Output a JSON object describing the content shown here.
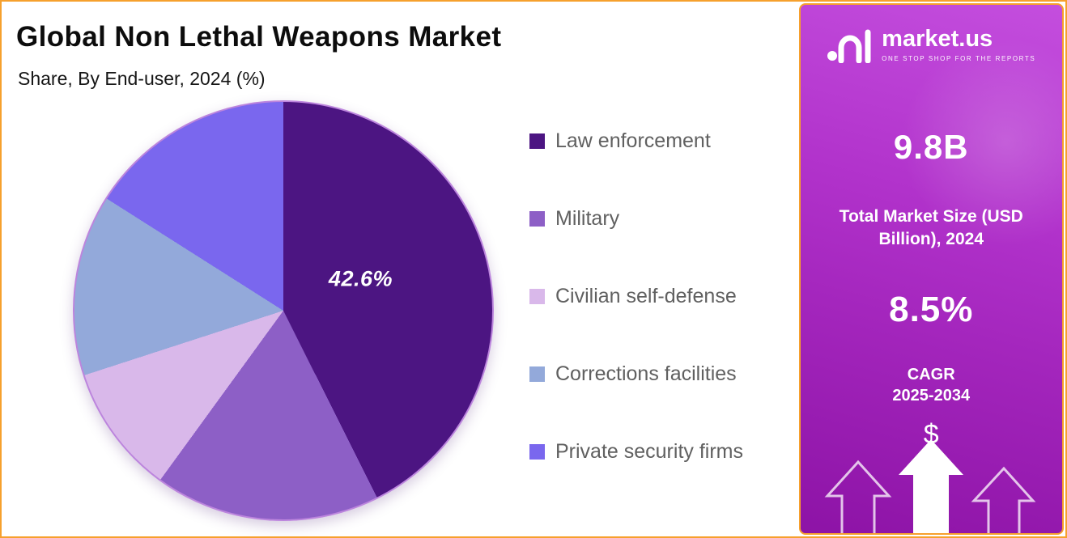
{
  "header": {
    "title": "Global Non Lethal Weapons Market",
    "subtitle": "Share, By End-user, 2024 (%)"
  },
  "chart_data": {
    "type": "pie",
    "title": "Global Non Lethal Weapons Market Share, By End-user, 2024 (%)",
    "labels": [
      "Law enforcement",
      "Military",
      "Civilian self-defense",
      "Corrections facilities",
      "Private security firms"
    ],
    "values": [
      42.6,
      17.4,
      10.0,
      14.0,
      16.0
    ],
    "colors": [
      "#4c1582",
      "#8d5fc6",
      "#d9b8ea",
      "#93a9da",
      "#7a67ee"
    ],
    "start_angle_deg": 0,
    "direction": "clockwise",
    "data_label": {
      "slice": "Law enforcement",
      "text": "42.6%"
    },
    "legend_position": "right",
    "grid": false
  },
  "sidebar": {
    "logo": {
      "brand": "market.us",
      "tagline": "ONE STOP SHOP FOR THE REPORTS"
    },
    "market_size": {
      "value": "9.8B",
      "label": "Total Market Size (USD Billion), 2024"
    },
    "cagr": {
      "value": "8.5%",
      "label_line1": "CAGR",
      "label_line2": "2025-2034"
    },
    "dollar_symbol": "$"
  },
  "colors": {
    "accent_border": "#f6a02d",
    "legend_text": "#606060",
    "sidebar_top": "#c44ede",
    "sidebar_bottom": "#8d13a6"
  }
}
